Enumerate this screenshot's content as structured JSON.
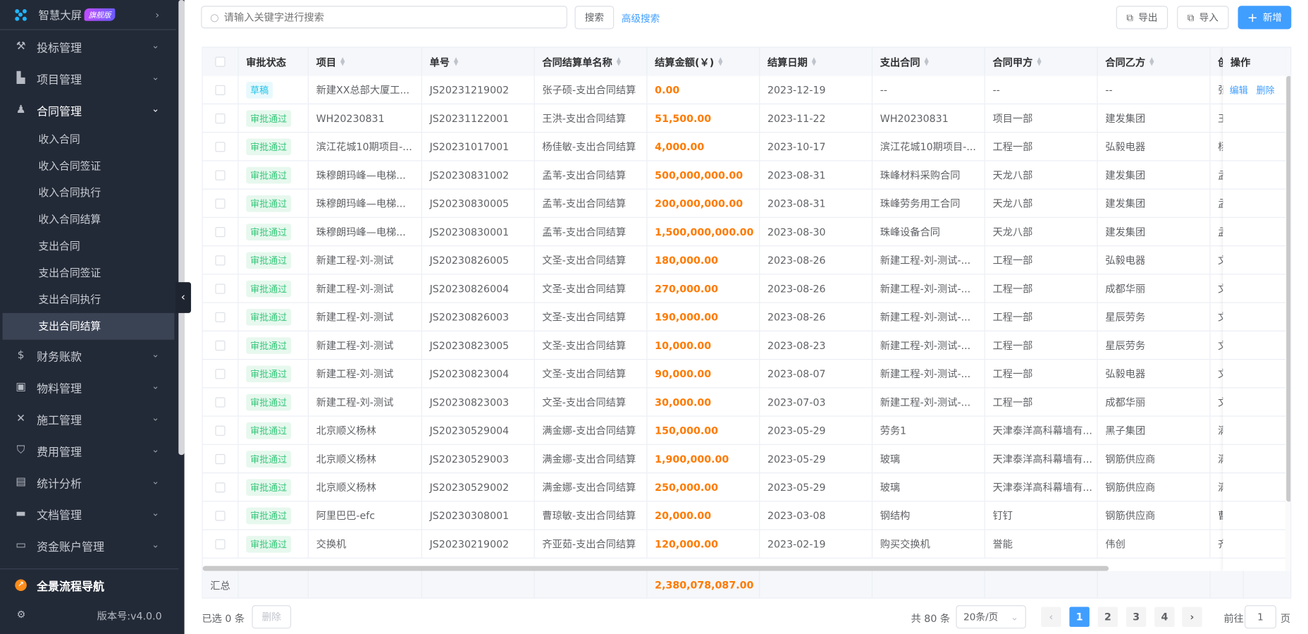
{
  "sidebar": {
    "brand": "智慧大屏",
    "brand_badge": "旗舰版",
    "menu": [
      {
        "label": "投标管理",
        "icon": "gavel-icon"
      },
      {
        "label": "项目管理",
        "icon": "building-icon"
      },
      {
        "label": "合同管理",
        "icon": "stamp-icon"
      }
    ],
    "sub": [
      "收入合同",
      "收入合同签证",
      "收入合同执行",
      "收入合同结算",
      "支出合同",
      "支出合同签证",
      "支出合同执行",
      "支出合同结算"
    ],
    "menu2": [
      {
        "label": "财务账款",
        "icon": "money-bag-icon"
      },
      {
        "label": "物料管理",
        "icon": "box-icon"
      },
      {
        "label": "施工管理",
        "icon": "tools-icon"
      },
      {
        "label": "费用管理",
        "icon": "shield-icon"
      },
      {
        "label": "统计分析",
        "icon": "chart-icon"
      },
      {
        "label": "文档管理",
        "icon": "folder-icon"
      },
      {
        "label": "资金账户管理",
        "icon": "wallet-icon"
      }
    ],
    "nav": "全景流程导航",
    "version": "版本号:v4.0.0"
  },
  "toolbar": {
    "search_placeholder": "请输入关键字进行搜索",
    "search": "搜索",
    "advanced": "高级搜索",
    "export": "导出",
    "import": "导入",
    "add": "新增",
    "accent": "#409eff"
  },
  "table": {
    "headers": [
      "审批状态",
      "项目",
      "单号",
      "合同结算单名称",
      "结算金额(￥)",
      "结算日期",
      "支出合同",
      "合同甲方",
      "合同乙方",
      "创",
      "操作"
    ],
    "actions": [
      "编辑",
      "删除"
    ],
    "rows": [
      [
        "草稿",
        "新建XX总部大厦工...",
        "JS20231219002",
        "张子硕-支出合同结算",
        "0.00",
        "2023-12-19",
        "--",
        "--",
        "--",
        "张"
      ],
      [
        "审批通过",
        "WH20230831",
        "JS20231122001",
        "王洪-支出合同结算",
        "51,500.00",
        "2023-11-22",
        "WH20230831",
        "项目一部",
        "建发集团",
        "王"
      ],
      [
        "审批通过",
        "滨江花城10期项目-...",
        "JS20231017001",
        "杨佳敏-支出合同结算",
        "4,000.00",
        "2023-10-17",
        "滨江花城10期项目-...",
        "工程一部",
        "弘毅电器",
        "杨"
      ],
      [
        "审批通过",
        "珠穆朗玛峰—电梯...",
        "JS20230831002",
        "孟苇-支出合同结算",
        "500,000,000.00",
        "2023-08-31",
        "珠峰材料采购合同",
        "天龙八部",
        "建发集团",
        "孟"
      ],
      [
        "审批通过",
        "珠穆朗玛峰—电梯...",
        "JS20230830005",
        "孟苇-支出合同结算",
        "200,000,000.00",
        "2023-08-31",
        "珠峰劳务用工合同",
        "天龙八部",
        "建发集团",
        "孟"
      ],
      [
        "审批通过",
        "珠穆朗玛峰—电梯...",
        "JS20230830001",
        "孟苇-支出合同结算",
        "1,500,000,000.00",
        "2023-08-30",
        "珠峰设备合同",
        "天龙八部",
        "建发集团",
        "孟"
      ],
      [
        "审批通过",
        "新建工程-刘-测试",
        "JS20230826005",
        "文圣-支出合同结算",
        "180,000.00",
        "2023-08-26",
        "新建工程-刘-测试-...",
        "工程一部",
        "弘毅电器",
        "文"
      ],
      [
        "审批通过",
        "新建工程-刘-测试",
        "JS20230826004",
        "文圣-支出合同结算",
        "270,000.00",
        "2023-08-26",
        "新建工程-刘-测试-...",
        "工程一部",
        "成都华丽",
        "文"
      ],
      [
        "审批通过",
        "新建工程-刘-测试",
        "JS20230826003",
        "文圣-支出合同结算",
        "190,000.00",
        "2023-08-26",
        "新建工程-刘-测试-...",
        "工程一部",
        "星辰劳务",
        "文"
      ],
      [
        "审批通过",
        "新建工程-刘-测试",
        "JS20230823005",
        "文圣-支出合同结算",
        "10,000.00",
        "2023-08-23",
        "新建工程-刘-测试-...",
        "工程一部",
        "星辰劳务",
        "文"
      ],
      [
        "审批通过",
        "新建工程-刘-测试",
        "JS20230823004",
        "文圣-支出合同结算",
        "90,000.00",
        "2023-08-07",
        "新建工程-刘-测试-...",
        "工程一部",
        "弘毅电器",
        "文"
      ],
      [
        "审批通过",
        "新建工程-刘-测试",
        "JS20230823003",
        "文圣-支出合同结算",
        "30,000.00",
        "2023-07-03",
        "新建工程-刘-测试-...",
        "工程一部",
        "成都华丽",
        "文"
      ],
      [
        "审批通过",
        "北京顺义杨林",
        "JS20230529004",
        "满金娜-支出合同结算",
        "150,000.00",
        "2023-05-29",
        "劳务1",
        "天津泰洋高科幕墙有...",
        "黑子集团",
        "满"
      ],
      [
        "审批通过",
        "北京顺义杨林",
        "JS20230529003",
        "满金娜-支出合同结算",
        "1,900,000.00",
        "2023-05-29",
        "玻璃",
        "天津泰洋高科幕墙有...",
        "钢筋供应商",
        "满"
      ],
      [
        "审批通过",
        "北京顺义杨林",
        "JS20230529002",
        "满金娜-支出合同结算",
        "250,000.00",
        "2023-05-29",
        "玻璃",
        "天津泰洋高科幕墙有...",
        "钢筋供应商",
        "满"
      ],
      [
        "审批通过",
        "阿里巴巴-efc",
        "JS20230308001",
        "曹琼敏-支出合同结算",
        "20,000.00",
        "2023-03-08",
        "钢结构",
        "钉钉",
        "钢筋供应商",
        "曹"
      ],
      [
        "审批通过",
        "交换机",
        "JS20230219002",
        "齐亚茹-支出合同结算",
        "120,000.00",
        "2023-02-19",
        "购买交换机",
        "誉能",
        "伟创",
        "齐"
      ]
    ],
    "summary_label": "汇总",
    "summary_total": "2,380,078,087.00",
    "colors": {
      "draft_bg": "#e8f9fd",
      "draft_fg": "#1fc3e8",
      "ok_bg": "#e7f8ee",
      "ok_fg": "#36c77a",
      "amount": "#ff7a00"
    }
  },
  "footer": {
    "selected": "已选 0 条",
    "delete": "删除",
    "total": "共 80 条",
    "page_size": "20条/页",
    "pages": [
      "1",
      "2",
      "3",
      "4"
    ],
    "current_page": "1",
    "goto_label": "前往",
    "goto_value": "1",
    "page_unit": "页"
  }
}
